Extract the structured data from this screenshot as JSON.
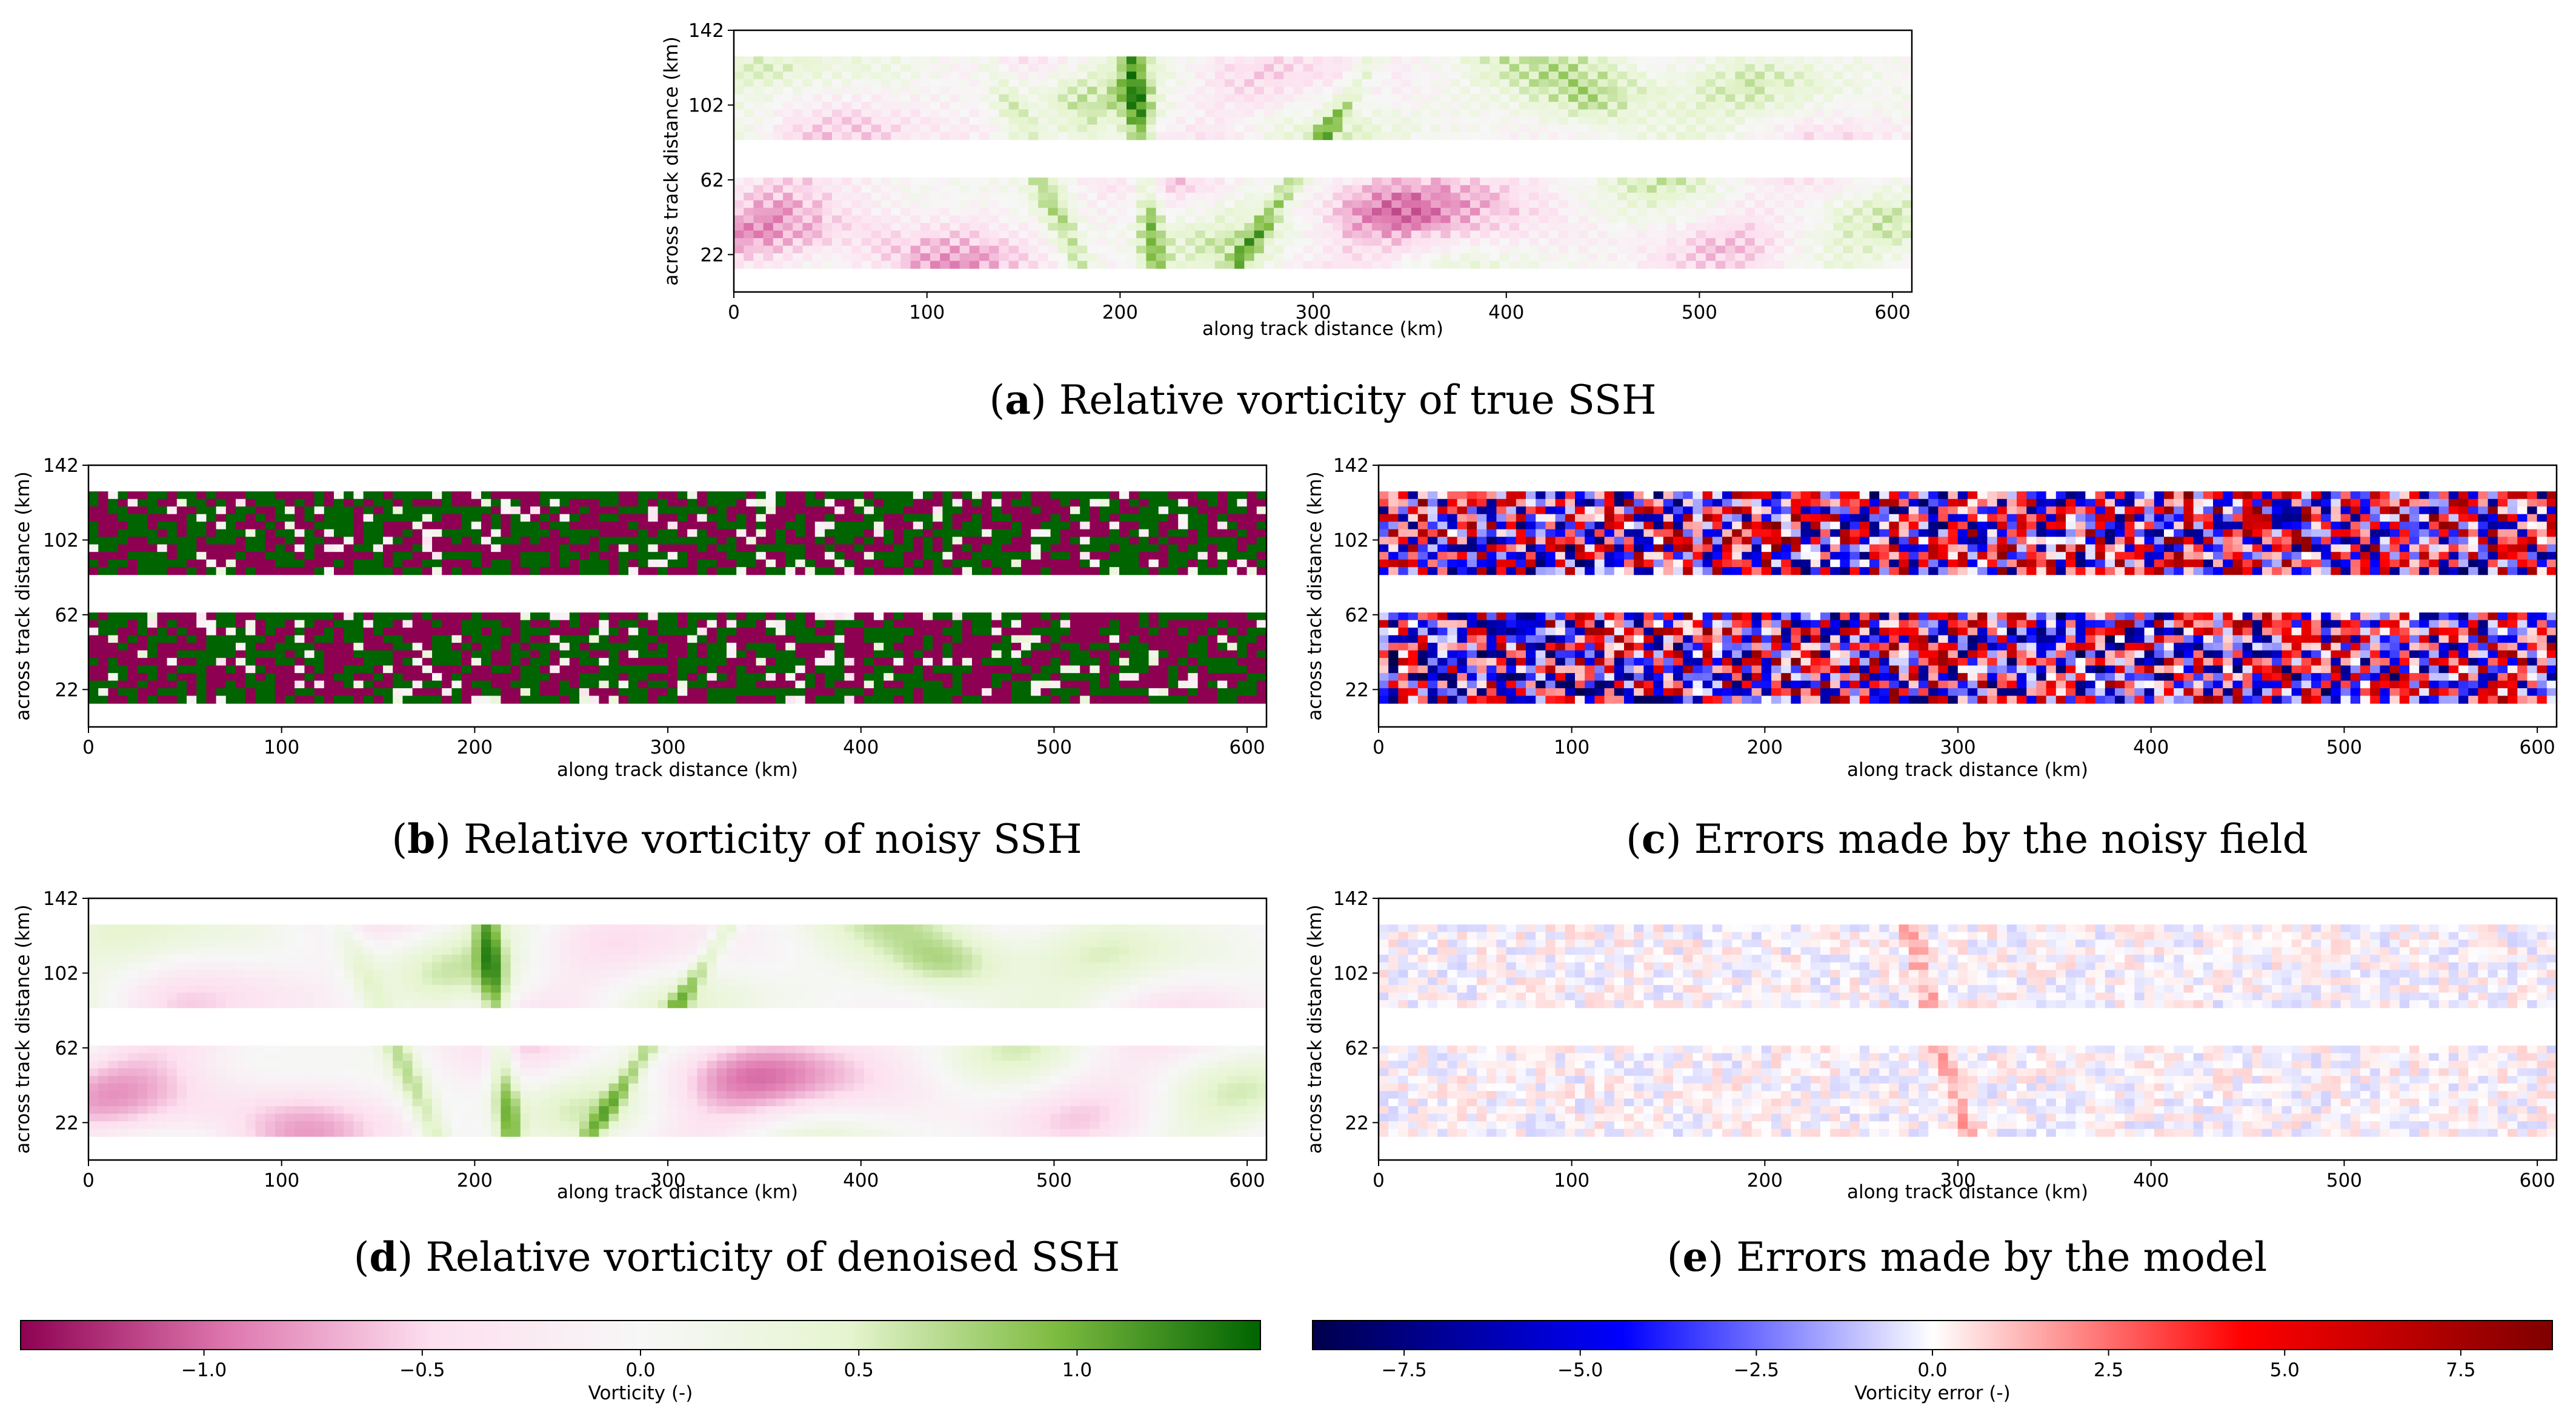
{
  "figure": {
    "panels": [
      {
        "id": "a",
        "caption_letter": "a",
        "caption_text": "Relative vorticity of true SSH",
        "field": "true",
        "xlabel": "along track distance (km)",
        "ylabel": "across track distance (km)",
        "xticks": [
          "0",
          "100",
          "200",
          "300",
          "400",
          "500",
          "600"
        ],
        "yticks": [
          "142",
          "102",
          "62",
          "22"
        ]
      },
      {
        "id": "b",
        "caption_letter": "b",
        "caption_text": "Relative vorticity of noisy SSH",
        "field": "noisy",
        "xlabel": "along track distance (km)",
        "ylabel": "across track distance (km)",
        "xticks": [
          "0",
          "100",
          "200",
          "300",
          "400",
          "500",
          "600"
        ],
        "yticks": [
          "142",
          "102",
          "62",
          "22"
        ]
      },
      {
        "id": "c",
        "caption_letter": "c",
        "caption_text": "Errors made by the noisy field",
        "field": "noisy_error",
        "xlabel": "along track distance (km)",
        "ylabel": "across track distance (km)",
        "xticks": [
          "0",
          "100",
          "200",
          "300",
          "400",
          "500",
          "600"
        ],
        "yticks": [
          "142",
          "102",
          "62",
          "22"
        ]
      },
      {
        "id": "d",
        "caption_letter": "d",
        "caption_text": "Relative vorticity of denoised SSH",
        "field": "denoised",
        "xlabel": "along track distance (km)",
        "ylabel": "across track distance (km)",
        "xticks": [
          "0",
          "100",
          "200",
          "300",
          "400",
          "500",
          "600"
        ],
        "yticks": [
          "142",
          "102",
          "62",
          "22"
        ]
      },
      {
        "id": "e",
        "caption_letter": "e",
        "caption_text": "Errors made by the model",
        "field": "model_error",
        "xlabel": "along track distance (km)",
        "ylabel": "across track distance (km)",
        "xticks": [
          "0",
          "100",
          "200",
          "300",
          "400",
          "500",
          "600"
        ],
        "yticks": [
          "142",
          "102",
          "62",
          "22"
        ]
      }
    ],
    "colorbars": [
      {
        "id": "vorticity",
        "label": "Vorticity (-)",
        "ticks": [
          "−1.0",
          "−0.5",
          "0.0",
          "0.5",
          "1.0"
        ],
        "colors": [
          "#8e0152",
          "#de77ae",
          "#fde0ef",
          "#f7f7f7",
          "#e6f5d0",
          "#7fbc41",
          "#006400"
        ]
      },
      {
        "id": "error",
        "label": "Vorticity error (-)",
        "ticks": [
          "−7.5",
          "−5.0",
          "−2.5",
          "0.0",
          "2.5",
          "5.0",
          "7.5"
        ],
        "colors": [
          "#00004c",
          "#0000ff",
          "#ffffff",
          "#ff0000",
          "#7f0000"
        ]
      }
    ]
  },
  "chart_data": [
    {
      "type": "heatmap",
      "title": "Relative vorticity of true SSH",
      "xlabel": "along track distance (km)",
      "ylabel": "across track distance (km)",
      "xlim": [
        0,
        610
      ],
      "ylim": [
        2,
        142
      ],
      "value_range": [
        -1.4,
        1.4
      ],
      "colorbar": "Vorticity (-)"
    },
    {
      "type": "heatmap",
      "title": "Relative vorticity of noisy SSH",
      "xlabel": "along track distance (km)",
      "ylabel": "across track distance (km)",
      "xlim": [
        0,
        610
      ],
      "ylim": [
        2,
        142
      ],
      "value_range": [
        -1.4,
        1.4
      ],
      "colorbar": "Vorticity (-)"
    },
    {
      "type": "heatmap",
      "title": "Errors made by the noisy field",
      "xlabel": "along track distance (km)",
      "ylabel": "across track distance (km)",
      "xlim": [
        0,
        610
      ],
      "ylim": [
        2,
        142
      ],
      "value_range": [
        -8.8,
        8.8
      ],
      "colorbar": "Vorticity error (-)"
    },
    {
      "type": "heatmap",
      "title": "Relative vorticity of denoised SSH",
      "xlabel": "along track distance (km)",
      "ylabel": "across track distance (km)",
      "xlim": [
        0,
        610
      ],
      "ylim": [
        2,
        142
      ],
      "value_range": [
        -1.4,
        1.4
      ],
      "colorbar": "Vorticity (-)"
    },
    {
      "type": "heatmap",
      "title": "Errors made by the model",
      "xlabel": "along track distance (km)",
      "ylabel": "across track distance (km)",
      "xlim": [
        0,
        610
      ],
      "ylim": [
        2,
        142
      ],
      "value_range": [
        -8.8,
        8.8
      ],
      "colorbar": "Vorticity error (-)"
    }
  ]
}
